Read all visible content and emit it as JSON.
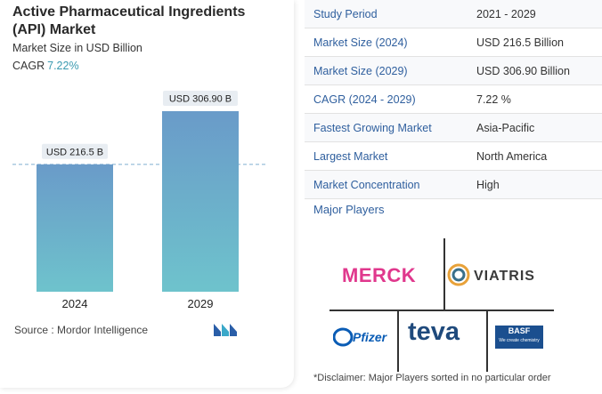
{
  "header": {
    "title": "Active Pharmaceutical Ingredients (API) Market",
    "subtitle": "Market Size in USD Billion",
    "cagr_label": "CAGR",
    "cagr_value": "7.22%"
  },
  "chart_data": {
    "type": "bar",
    "categories": [
      "2024",
      "2029"
    ],
    "values": [
      216.5,
      306.9
    ],
    "data_labels": [
      "USD 216.5 B",
      "USD 306.90 B"
    ],
    "reference_line": 216.5,
    "colors": {
      "bar_top": "#6a9bc9",
      "bar_bottom": "#6ec3cc",
      "label_bg": "#e8edf2",
      "dashed_line": "#8fb8d6"
    }
  },
  "source": {
    "text": "Source :  Mordor Intelligence"
  },
  "table": {
    "rows": [
      {
        "key": "Study Period",
        "value": "2021 - 2029"
      },
      {
        "key": "Market Size (2024)",
        "value": "USD 216.5 Billion"
      },
      {
        "key": "Market Size (2029)",
        "value": "USD 306.90 Billion"
      },
      {
        "key": "CAGR (2024 - 2029)",
        "value": "7.22 %"
      },
      {
        "key": "Fastest Growing Market",
        "value": "Asia-Pacific"
      },
      {
        "key": "Largest Market",
        "value": "North America"
      },
      {
        "key": "Market Concentration",
        "value": "High"
      }
    ]
  },
  "players": {
    "title": "Major Players",
    "logos": [
      "MERCK",
      "VIATRIS",
      "Pfizer",
      "teva",
      "BASF"
    ],
    "basf_tagline": "We create chemistry"
  },
  "disclaimer": "*Disclaimer: Major Players sorted in no particular order",
  "colors": {
    "accent_blue": "#2f5f9e",
    "cagr_teal": "#3a9ab0",
    "merck_pink": "#e0388d",
    "teva_blue": "#1f4a7c",
    "basf_blue": "#1b4f8f",
    "pfizer_blue": "#0a5cb5",
    "viatris_teal": "#3a6f8a"
  }
}
